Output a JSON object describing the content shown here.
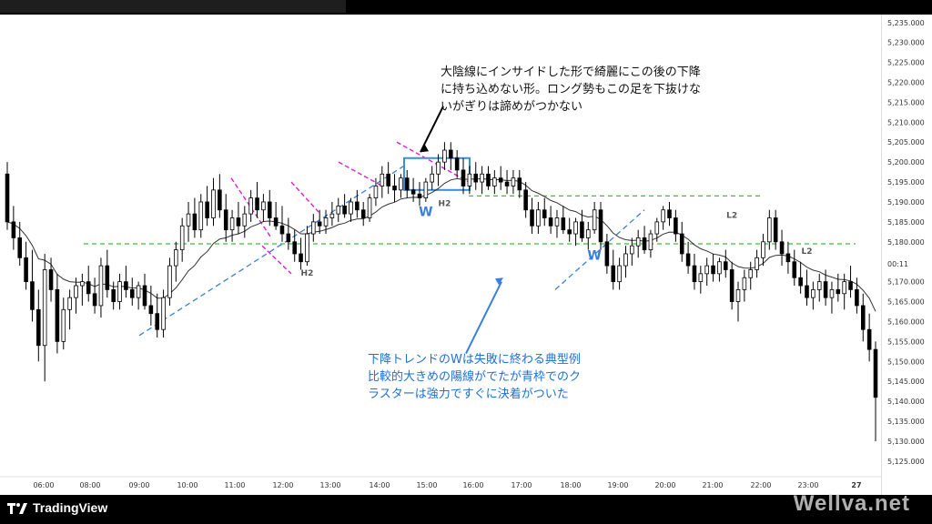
{
  "chart_data": {
    "type": "candlestick",
    "title": "",
    "ylim": [
      5122,
      5237
    ],
    "y_ticks": [
      "5,125.000",
      "5,130.000",
      "5,135.000",
      "5,140.000",
      "5,145.000",
      "5,150.000",
      "5,155.000",
      "5,160.000",
      "5,165.000",
      "5,170.000",
      "5,175.000",
      "5,180.000",
      "5,185.000",
      "5,190.000",
      "5,195.000",
      "5,200.000",
      "5,205.000",
      "5,210.000",
      "5,215.000",
      "5,220.000",
      "5,225.000",
      "5,230.000",
      "5,235.000"
    ],
    "y_tick_values": [
      5125,
      5130,
      5135,
      5140,
      5145,
      5150,
      5155,
      5160,
      5165,
      5170,
      5175,
      5180,
      5185,
      5190,
      5195,
      5200,
      5205,
      5210,
      5215,
      5220,
      5225,
      5230,
      5235
    ],
    "x_ticks": [
      "06:00",
      "08:00",
      "09:00",
      "10:00",
      "11:00",
      "12:00",
      "13:00",
      "14:00",
      "15:00",
      "16:00",
      "17:00",
      "18:00",
      "19:00",
      "20:00",
      "21:00",
      "22:00",
      "23:00",
      "27"
    ],
    "current_price_label": "00:11",
    "current_price": 5174.5,
    "horizontal_levels": [
      5179.5,
      5191.5
    ],
    "bar_labels": [
      {
        "text": "H2",
        "x_index": 48,
        "price": 5171.5
      },
      {
        "text": "H2",
        "x_index": 70,
        "price": 5189.0
      },
      {
        "text": "L2",
        "x_index": 116,
        "price": 5186.0
      },
      {
        "text": "L2",
        "x_index": 128,
        "price": 5177.0
      }
    ],
    "w_labels": [
      {
        "text": "W",
        "x_index": 67,
        "price": 5186.5
      },
      {
        "text": "W",
        "x_index": 94,
        "price": 5175.5
      }
    ],
    "candles": [
      {
        "o": 5197,
        "h": 5200,
        "l": 5183,
        "c": 5185
      },
      {
        "o": 5185,
        "h": 5189,
        "l": 5178,
        "c": 5181
      },
      {
        "o": 5181,
        "h": 5185,
        "l": 5174,
        "c": 5176
      },
      {
        "o": 5176,
        "h": 5180,
        "l": 5168,
        "c": 5170
      },
      {
        "o": 5170,
        "h": 5178,
        "l": 5160,
        "c": 5163
      },
      {
        "o": 5163,
        "h": 5168,
        "l": 5150,
        "c": 5154
      },
      {
        "o": 5154,
        "h": 5177,
        "l": 5145,
        "c": 5173
      },
      {
        "o": 5173,
        "h": 5176,
        "l": 5165,
        "c": 5168
      },
      {
        "o": 5168,
        "h": 5172,
        "l": 5152,
        "c": 5155
      },
      {
        "o": 5155,
        "h": 5166,
        "l": 5153,
        "c": 5163
      },
      {
        "o": 5163,
        "h": 5168,
        "l": 5158,
        "c": 5166
      },
      {
        "o": 5166,
        "h": 5171,
        "l": 5162,
        "c": 5169
      },
      {
        "o": 5169,
        "h": 5172,
        "l": 5164,
        "c": 5170
      },
      {
        "o": 5170,
        "h": 5174,
        "l": 5165,
        "c": 5167
      },
      {
        "o": 5167,
        "h": 5171,
        "l": 5162,
        "c": 5164
      },
      {
        "o": 5164,
        "h": 5176,
        "l": 5161,
        "c": 5174
      },
      {
        "o": 5174,
        "h": 5178,
        "l": 5166,
        "c": 5168
      },
      {
        "o": 5168,
        "h": 5170,
        "l": 5163,
        "c": 5165
      },
      {
        "o": 5165,
        "h": 5172,
        "l": 5163,
        "c": 5170
      },
      {
        "o": 5170,
        "h": 5174,
        "l": 5166,
        "c": 5168
      },
      {
        "o": 5168,
        "h": 5171,
        "l": 5164,
        "c": 5166
      },
      {
        "o": 5166,
        "h": 5170,
        "l": 5163,
        "c": 5169
      },
      {
        "o": 5169,
        "h": 5172,
        "l": 5163,
        "c": 5164
      },
      {
        "o": 5164,
        "h": 5169,
        "l": 5159,
        "c": 5162
      },
      {
        "o": 5162,
        "h": 5167,
        "l": 5156,
        "c": 5158
      },
      {
        "o": 5158,
        "h": 5168,
        "l": 5156,
        "c": 5166
      },
      {
        "o": 5166,
        "h": 5176,
        "l": 5164,
        "c": 5174
      },
      {
        "o": 5174,
        "h": 5180,
        "l": 5170,
        "c": 5178
      },
      {
        "o": 5178,
        "h": 5186,
        "l": 5175,
        "c": 5184
      },
      {
        "o": 5184,
        "h": 5190,
        "l": 5180,
        "c": 5187
      },
      {
        "o": 5187,
        "h": 5191,
        "l": 5181,
        "c": 5183
      },
      {
        "o": 5183,
        "h": 5192,
        "l": 5181,
        "c": 5190
      },
      {
        "o": 5190,
        "h": 5194,
        "l": 5184,
        "c": 5186
      },
      {
        "o": 5186,
        "h": 5196,
        "l": 5184,
        "c": 5193
      },
      {
        "o": 5193,
        "h": 5197,
        "l": 5186,
        "c": 5188
      },
      {
        "o": 5188,
        "h": 5192,
        "l": 5180,
        "c": 5183
      },
      {
        "o": 5183,
        "h": 5188,
        "l": 5180,
        "c": 5186
      },
      {
        "o": 5186,
        "h": 5190,
        "l": 5182,
        "c": 5184
      },
      {
        "o": 5184,
        "h": 5189,
        "l": 5181,
        "c": 5187
      },
      {
        "o": 5187,
        "h": 5193,
        "l": 5185,
        "c": 5191
      },
      {
        "o": 5191,
        "h": 5195,
        "l": 5186,
        "c": 5188
      },
      {
        "o": 5188,
        "h": 5192,
        "l": 5185,
        "c": 5190
      },
      {
        "o": 5190,
        "h": 5193,
        "l": 5184,
        "c": 5186
      },
      {
        "o": 5186,
        "h": 5190,
        "l": 5183,
        "c": 5184
      },
      {
        "o": 5184,
        "h": 5189,
        "l": 5180,
        "c": 5182
      },
      {
        "o": 5182,
        "h": 5186,
        "l": 5178,
        "c": 5180
      },
      {
        "o": 5180,
        "h": 5183,
        "l": 5175,
        "c": 5177
      },
      {
        "o": 5177,
        "h": 5181,
        "l": 5173,
        "c": 5175
      },
      {
        "o": 5175,
        "h": 5184,
        "l": 5174,
        "c": 5182
      },
      {
        "o": 5182,
        "h": 5187,
        "l": 5180,
        "c": 5185
      },
      {
        "o": 5185,
        "h": 5188,
        "l": 5182,
        "c": 5184
      },
      {
        "o": 5184,
        "h": 5188,
        "l": 5182,
        "c": 5186
      },
      {
        "o": 5186,
        "h": 5190,
        "l": 5184,
        "c": 5187
      },
      {
        "o": 5187,
        "h": 5191,
        "l": 5185,
        "c": 5189
      },
      {
        "o": 5189,
        "h": 5192,
        "l": 5186,
        "c": 5187
      },
      {
        "o": 5187,
        "h": 5191,
        "l": 5185,
        "c": 5190
      },
      {
        "o": 5190,
        "h": 5193,
        "l": 5186,
        "c": 5188
      },
      {
        "o": 5188,
        "h": 5190,
        "l": 5184,
        "c": 5186
      },
      {
        "o": 5186,
        "h": 5192,
        "l": 5185,
        "c": 5191
      },
      {
        "o": 5191,
        "h": 5196,
        "l": 5189,
        "c": 5194
      },
      {
        "o": 5194,
        "h": 5199,
        "l": 5191,
        "c": 5197
      },
      {
        "o": 5197,
        "h": 5200,
        "l": 5192,
        "c": 5194
      },
      {
        "o": 5194,
        "h": 5197,
        "l": 5190,
        "c": 5193
      },
      {
        "o": 5193,
        "h": 5197,
        "l": 5191,
        "c": 5196
      },
      {
        "o": 5196,
        "h": 5198,
        "l": 5191,
        "c": 5193
      },
      {
        "o": 5193,
        "h": 5196,
        "l": 5190,
        "c": 5192
      },
      {
        "o": 5192,
        "h": 5195,
        "l": 5189,
        "c": 5191
      },
      {
        "o": 5191,
        "h": 5196,
        "l": 5190,
        "c": 5195
      },
      {
        "o": 5195,
        "h": 5199,
        "l": 5193,
        "c": 5197
      },
      {
        "o": 5197,
        "h": 5202,
        "l": 5194,
        "c": 5200
      },
      {
        "o": 5200,
        "h": 5205,
        "l": 5198,
        "c": 5203
      },
      {
        "o": 5203,
        "h": 5205,
        "l": 5198,
        "c": 5201
      },
      {
        "o": 5201,
        "h": 5203,
        "l": 5196,
        "c": 5198
      },
      {
        "o": 5198,
        "h": 5201,
        "l": 5192,
        "c": 5194
      },
      {
        "o": 5194,
        "h": 5199,
        "l": 5192,
        "c": 5197
      },
      {
        "o": 5197,
        "h": 5200,
        "l": 5193,
        "c": 5195
      },
      {
        "o": 5195,
        "h": 5199,
        "l": 5192,
        "c": 5197
      },
      {
        "o": 5197,
        "h": 5199,
        "l": 5193,
        "c": 5194
      },
      {
        "o": 5194,
        "h": 5198,
        "l": 5192,
        "c": 5196
      },
      {
        "o": 5196,
        "h": 5199,
        "l": 5193,
        "c": 5195
      },
      {
        "o": 5195,
        "h": 5198,
        "l": 5192,
        "c": 5194
      },
      {
        "o": 5194,
        "h": 5198,
        "l": 5192,
        "c": 5196
      },
      {
        "o": 5196,
        "h": 5198,
        "l": 5191,
        "c": 5193
      },
      {
        "o": 5193,
        "h": 5195,
        "l": 5186,
        "c": 5188
      },
      {
        "o": 5188,
        "h": 5191,
        "l": 5182,
        "c": 5184
      },
      {
        "o": 5184,
        "h": 5190,
        "l": 5182,
        "c": 5188
      },
      {
        "o": 5188,
        "h": 5191,
        "l": 5184,
        "c": 5186
      },
      {
        "o": 5186,
        "h": 5189,
        "l": 5182,
        "c": 5184
      },
      {
        "o": 5184,
        "h": 5188,
        "l": 5181,
        "c": 5186
      },
      {
        "o": 5186,
        "h": 5189,
        "l": 5182,
        "c": 5183
      },
      {
        "o": 5183,
        "h": 5186,
        "l": 5180,
        "c": 5182
      },
      {
        "o": 5182,
        "h": 5186,
        "l": 5179,
        "c": 5185
      },
      {
        "o": 5185,
        "h": 5188,
        "l": 5180,
        "c": 5181
      },
      {
        "o": 5181,
        "h": 5185,
        "l": 5178,
        "c": 5183
      },
      {
        "o": 5183,
        "h": 5190,
        "l": 5182,
        "c": 5188
      },
      {
        "o": 5188,
        "h": 5190,
        "l": 5178,
        "c": 5180
      },
      {
        "o": 5180,
        "h": 5182,
        "l": 5172,
        "c": 5174
      },
      {
        "o": 5174,
        "h": 5178,
        "l": 5168,
        "c": 5170
      },
      {
        "o": 5170,
        "h": 5176,
        "l": 5168,
        "c": 5174
      },
      {
        "o": 5174,
        "h": 5179,
        "l": 5171,
        "c": 5177
      },
      {
        "o": 5177,
        "h": 5181,
        "l": 5174,
        "c": 5179
      },
      {
        "o": 5179,
        "h": 5183,
        "l": 5176,
        "c": 5181
      },
      {
        "o": 5181,
        "h": 5184,
        "l": 5177,
        "c": 5178
      },
      {
        "o": 5178,
        "h": 5183,
        "l": 5176,
        "c": 5182
      },
      {
        "o": 5182,
        "h": 5186,
        "l": 5180,
        "c": 5185
      },
      {
        "o": 5185,
        "h": 5189,
        "l": 5183,
        "c": 5188
      },
      {
        "o": 5188,
        "h": 5190,
        "l": 5184,
        "c": 5186
      },
      {
        "o": 5186,
        "h": 5188,
        "l": 5180,
        "c": 5182
      },
      {
        "o": 5182,
        "h": 5185,
        "l": 5175,
        "c": 5177
      },
      {
        "o": 5177,
        "h": 5180,
        "l": 5172,
        "c": 5174
      },
      {
        "o": 5174,
        "h": 5177,
        "l": 5168,
        "c": 5170
      },
      {
        "o": 5170,
        "h": 5174,
        "l": 5167,
        "c": 5172
      },
      {
        "o": 5172,
        "h": 5176,
        "l": 5169,
        "c": 5174
      },
      {
        "o": 5174,
        "h": 5177,
        "l": 5170,
        "c": 5172
      },
      {
        "o": 5172,
        "h": 5176,
        "l": 5170,
        "c": 5175
      },
      {
        "o": 5175,
        "h": 5178,
        "l": 5171,
        "c": 5173
      },
      {
        "o": 5173,
        "h": 5175,
        "l": 5163,
        "c": 5165
      },
      {
        "o": 5165,
        "h": 5170,
        "l": 5160,
        "c": 5168
      },
      {
        "o": 5168,
        "h": 5173,
        "l": 5165,
        "c": 5171
      },
      {
        "o": 5171,
        "h": 5175,
        "l": 5168,
        "c": 5173
      },
      {
        "o": 5173,
        "h": 5178,
        "l": 5171,
        "c": 5176
      },
      {
        "o": 5176,
        "h": 5182,
        "l": 5174,
        "c": 5180
      },
      {
        "o": 5180,
        "h": 5188,
        "l": 5178,
        "c": 5186
      },
      {
        "o": 5186,
        "h": 5188,
        "l": 5178,
        "c": 5180
      },
      {
        "o": 5180,
        "h": 5183,
        "l": 5174,
        "c": 5177
      },
      {
        "o": 5177,
        "h": 5180,
        "l": 5172,
        "c": 5175
      },
      {
        "o": 5175,
        "h": 5178,
        "l": 5169,
        "c": 5171
      },
      {
        "o": 5171,
        "h": 5175,
        "l": 5167,
        "c": 5169
      },
      {
        "o": 5169,
        "h": 5173,
        "l": 5164,
        "c": 5166
      },
      {
        "o": 5166,
        "h": 5170,
        "l": 5163,
        "c": 5168
      },
      {
        "o": 5168,
        "h": 5172,
        "l": 5165,
        "c": 5170
      },
      {
        "o": 5170,
        "h": 5173,
        "l": 5164,
        "c": 5166
      },
      {
        "o": 5166,
        "h": 5170,
        "l": 5162,
        "c": 5168
      },
      {
        "o": 5168,
        "h": 5172,
        "l": 5165,
        "c": 5167
      },
      {
        "o": 5167,
        "h": 5172,
        "l": 5163,
        "c": 5170
      },
      {
        "o": 5170,
        "h": 5174,
        "l": 5166,
        "c": 5168
      },
      {
        "o": 5168,
        "h": 5171,
        "l": 5162,
        "c": 5164
      },
      {
        "o": 5164,
        "h": 5167,
        "l": 5155,
        "c": 5158
      },
      {
        "o": 5158,
        "h": 5162,
        "l": 5150,
        "c": 5153
      },
      {
        "o": 5153,
        "h": 5155,
        "l": 5130,
        "c": 5141
      }
    ],
    "moving_average_color": "#333333",
    "up_color": "#ffffff",
    "down_color": "#000000",
    "colors": {
      "magenta": "#e21ad8",
      "green": "#3cbf3c",
      "blue": "#3b7fd9",
      "box": "#3b8fd9"
    }
  },
  "annotations": {
    "top_note": "大陰線にインサイドした形で綺麗にこの後の下降\nに持ち込めない形。ロング勢もこの足を下抜けな\nいがぎりは諦めがつかない",
    "bottom_note": "下降トレンドのWは失敗に終わる典型例\n比較的大きめの陽線がでたが青枠でのク\nラスターは強力ですぐに決着がついた"
  },
  "footer": {
    "brand": "TradingView",
    "watermark": "Wellva.net"
  }
}
